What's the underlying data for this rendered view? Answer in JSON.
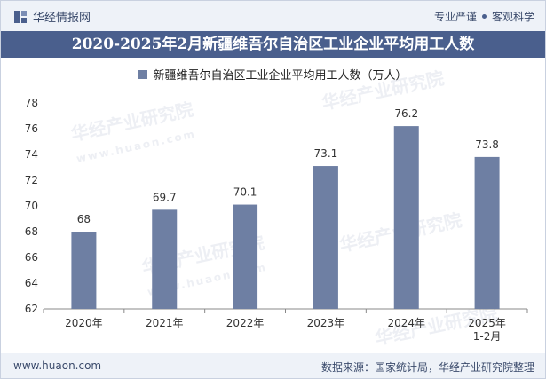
{
  "header": {
    "brand": "华经情报网",
    "slogan_left": "专业严谨",
    "slogan_right": "客观科学"
  },
  "title": "2020-2025年2月新疆维吾尔自治区工业企业平均用工人数",
  "watermark": {
    "text": "华经产业研究院",
    "url": "www.huaon.com"
  },
  "footer": {
    "website": "www.huaon.com",
    "source": "数据来源：国家统计局，华经产业研究院整理"
  },
  "colors": {
    "bar": "#6e7fa3",
    "title_bg": "#4a5f8d"
  },
  "chart_data": {
    "type": "bar",
    "title": "2020-2025年2月新疆维吾尔自治区工业企业平均用工人数",
    "categories": [
      "2020年",
      "2021年",
      "2022年",
      "2023年",
      "2024年",
      "2025年 1-2月"
    ],
    "series": [
      {
        "name": "新疆维吾尔自治区工业企业平均用工人数（万人）",
        "values": [
          68,
          69.7,
          70.1,
          73.1,
          76.2,
          73.8
        ],
        "labels": [
          "68",
          "69.7",
          "70.1",
          "73.1",
          "76.2",
          "73.8"
        ]
      }
    ],
    "category_lines": [
      [
        "2020年"
      ],
      [
        "2021年"
      ],
      [
        "2022年"
      ],
      [
        "2023年"
      ],
      [
        "2024年"
      ],
      [
        "2025年",
        "1-2月"
      ]
    ],
    "ylim": [
      62,
      78
    ],
    "yticks": [
      62,
      64,
      66,
      68,
      70,
      72,
      74,
      76,
      78
    ],
    "xlabel": "",
    "ylabel": "",
    "legend_position": "top-center",
    "grid": false
  }
}
